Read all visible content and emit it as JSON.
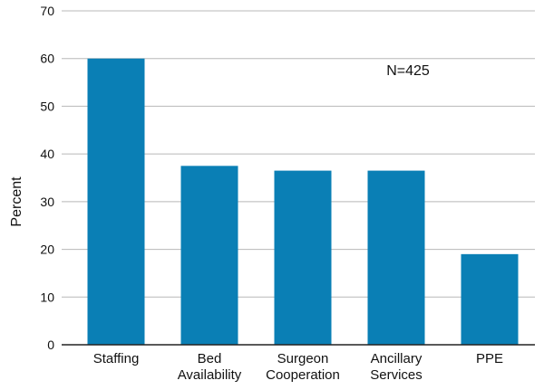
{
  "chart_data": {
    "type": "bar",
    "categories": [
      [
        "Staffing"
      ],
      [
        "Bed",
        "Availability"
      ],
      [
        "Surgeon",
        "Cooperation"
      ],
      [
        "Ancillary",
        "Services"
      ],
      [
        "PPE"
      ]
    ],
    "values": [
      60,
      37.5,
      36.5,
      36.5,
      19
    ],
    "ylabel": "Percent",
    "ylim": [
      0,
      70
    ],
    "yticks": [
      0,
      10,
      20,
      30,
      40,
      50,
      60,
      70
    ],
    "annotation": "N=425",
    "grid": true,
    "bar_color": "#0a7fb5"
  }
}
